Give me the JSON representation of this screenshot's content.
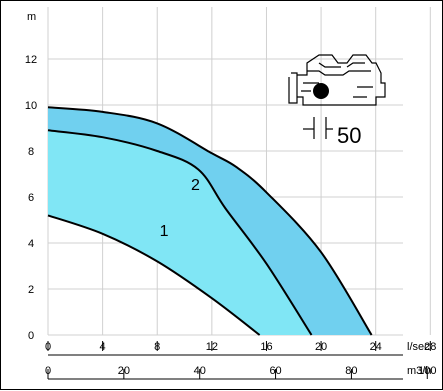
{
  "chart_data": {
    "type": "area",
    "y_unit": "m",
    "x_unit_primary": "l/sec",
    "x_unit_secondary": "m3/h",
    "ylim": [
      0,
      13.5
    ],
    "xlim": [
      0,
      26
    ],
    "y_ticks": [
      0,
      2,
      4,
      6,
      8,
      10,
      12
    ],
    "x_ticks_primary": [
      0,
      4,
      8,
      12,
      16,
      20,
      24,
      28
    ],
    "x_ticks_secondary": [
      0,
      20,
      40,
      60,
      80,
      100
    ],
    "grid": true,
    "series": [
      {
        "name": "1",
        "fill_color": "#80e6f5",
        "upper": [
          [
            0,
            8.9
          ],
          [
            4,
            8.6
          ],
          [
            8,
            8.0
          ],
          [
            11,
            7.2
          ],
          [
            13,
            5.5
          ],
          [
            16,
            3.1
          ],
          [
            19.3,
            0.0
          ]
        ],
        "lower": [
          [
            0,
            5.2
          ],
          [
            4,
            4.4
          ],
          [
            8,
            3.2
          ],
          [
            12,
            1.6
          ],
          [
            15.5,
            0.0
          ]
        ]
      },
      {
        "name": "2",
        "fill_color": "#70d0ef",
        "upper": [
          [
            0,
            9.9
          ],
          [
            4,
            9.7
          ],
          [
            8,
            9.2
          ],
          [
            12,
            7.9
          ],
          [
            13.8,
            7.3
          ],
          [
            16,
            6.2
          ],
          [
            20,
            3.6
          ],
          [
            23.7,
            0.0
          ]
        ],
        "lower": [
          [
            0,
            8.9
          ],
          [
            4,
            8.6
          ],
          [
            8,
            8.0
          ],
          [
            11,
            7.2
          ],
          [
            13,
            5.5
          ],
          [
            16,
            3.1
          ],
          [
            19.3,
            0.0
          ]
        ]
      }
    ],
    "annotation": "50",
    "colors": {
      "curve": "#000000",
      "grid": "#d0d0d0"
    }
  }
}
